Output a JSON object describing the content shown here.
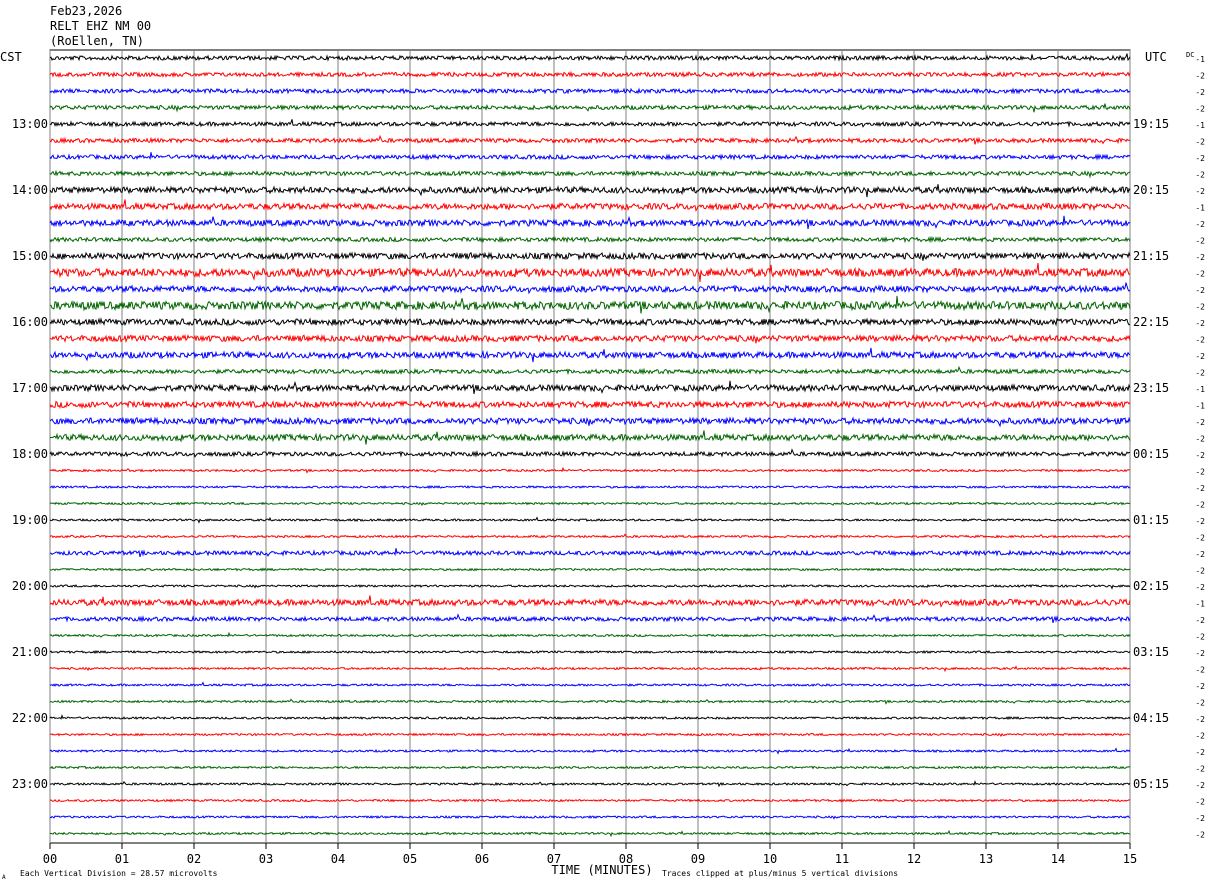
{
  "header": {
    "date": "Feb23,2026",
    "station": "RELT EHZ NM 00",
    "location": "(RoEllen, TN)"
  },
  "chart_data": {
    "type": "line",
    "title": "",
    "left_axis_label": "CST",
    "right_axis_label": "UTC",
    "dc_label": "DC",
    "xlabel": "TIME (MINUTES)",
    "x_tick_labels": [
      "00",
      "01",
      "02",
      "03",
      "04",
      "05",
      "06",
      "07",
      "08",
      "09",
      "10",
      "11",
      "12",
      "13",
      "14",
      "15"
    ],
    "xlim": [
      0,
      15
    ],
    "grid": true,
    "trace_colors": [
      "#000000",
      "#ff0000",
      "#0000ff",
      "#006400"
    ],
    "left_hour_labels": [
      "13:00",
      "14:00",
      "15:00",
      "16:00",
      "17:00",
      "18:00",
      "19:00",
      "20:00",
      "21:00",
      "22:00",
      "23:00"
    ],
    "right_hour_labels": [
      "19:15",
      "20:15",
      "21:15",
      "22:15",
      "23:15",
      "00:15",
      "01:15",
      "02:15",
      "03:15",
      "04:15",
      "05:15"
    ],
    "dc_offsets": [
      -1,
      -2,
      -2,
      -2,
      -1,
      -2,
      -2,
      -2,
      -2,
      -1,
      -2,
      -2,
      -2,
      -2,
      -2,
      -2,
      -2,
      -2,
      -2,
      -2,
      -1,
      -1,
      -2,
      -2,
      -2,
      -2,
      -2,
      -2,
      -2,
      -2,
      -2,
      -2,
      -2,
      -1,
      -2,
      -2,
      -2,
      -2,
      -2,
      -2,
      -2,
      -2,
      -2,
      -2,
      -2,
      -2,
      -2,
      -2
    ],
    "trace_amplitude": [
      2,
      2,
      2,
      2,
      2,
      2,
      2,
      2,
      3,
      3,
      3,
      2,
      3,
      4,
      3,
      4,
      3,
      3,
      3,
      2,
      3,
      3,
      3,
      3,
      2,
      1,
      1,
      1,
      1,
      1,
      2,
      1,
      1,
      3,
      2,
      1,
      1,
      1,
      1,
      1,
      1,
      1,
      1,
      1,
      1,
      1,
      1,
      1
    ],
    "footer_left": "Each Vertical Division =   28.57 microvolts",
    "footer_right": "Traces clipped at plus/minus 5 vertical divisions",
    "corner_mark": "A"
  }
}
